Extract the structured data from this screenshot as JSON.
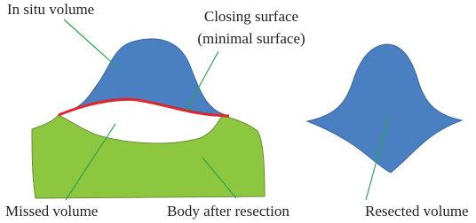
{
  "labels": {
    "in_situ_volume": "In situ volume",
    "closing_surface": "Closing surface",
    "minimal_surface": "(minimal surface)",
    "missed_volume": "Missed volume",
    "body_after_resection": "Body after resection",
    "resected_volume": "Resected volume"
  }
}
